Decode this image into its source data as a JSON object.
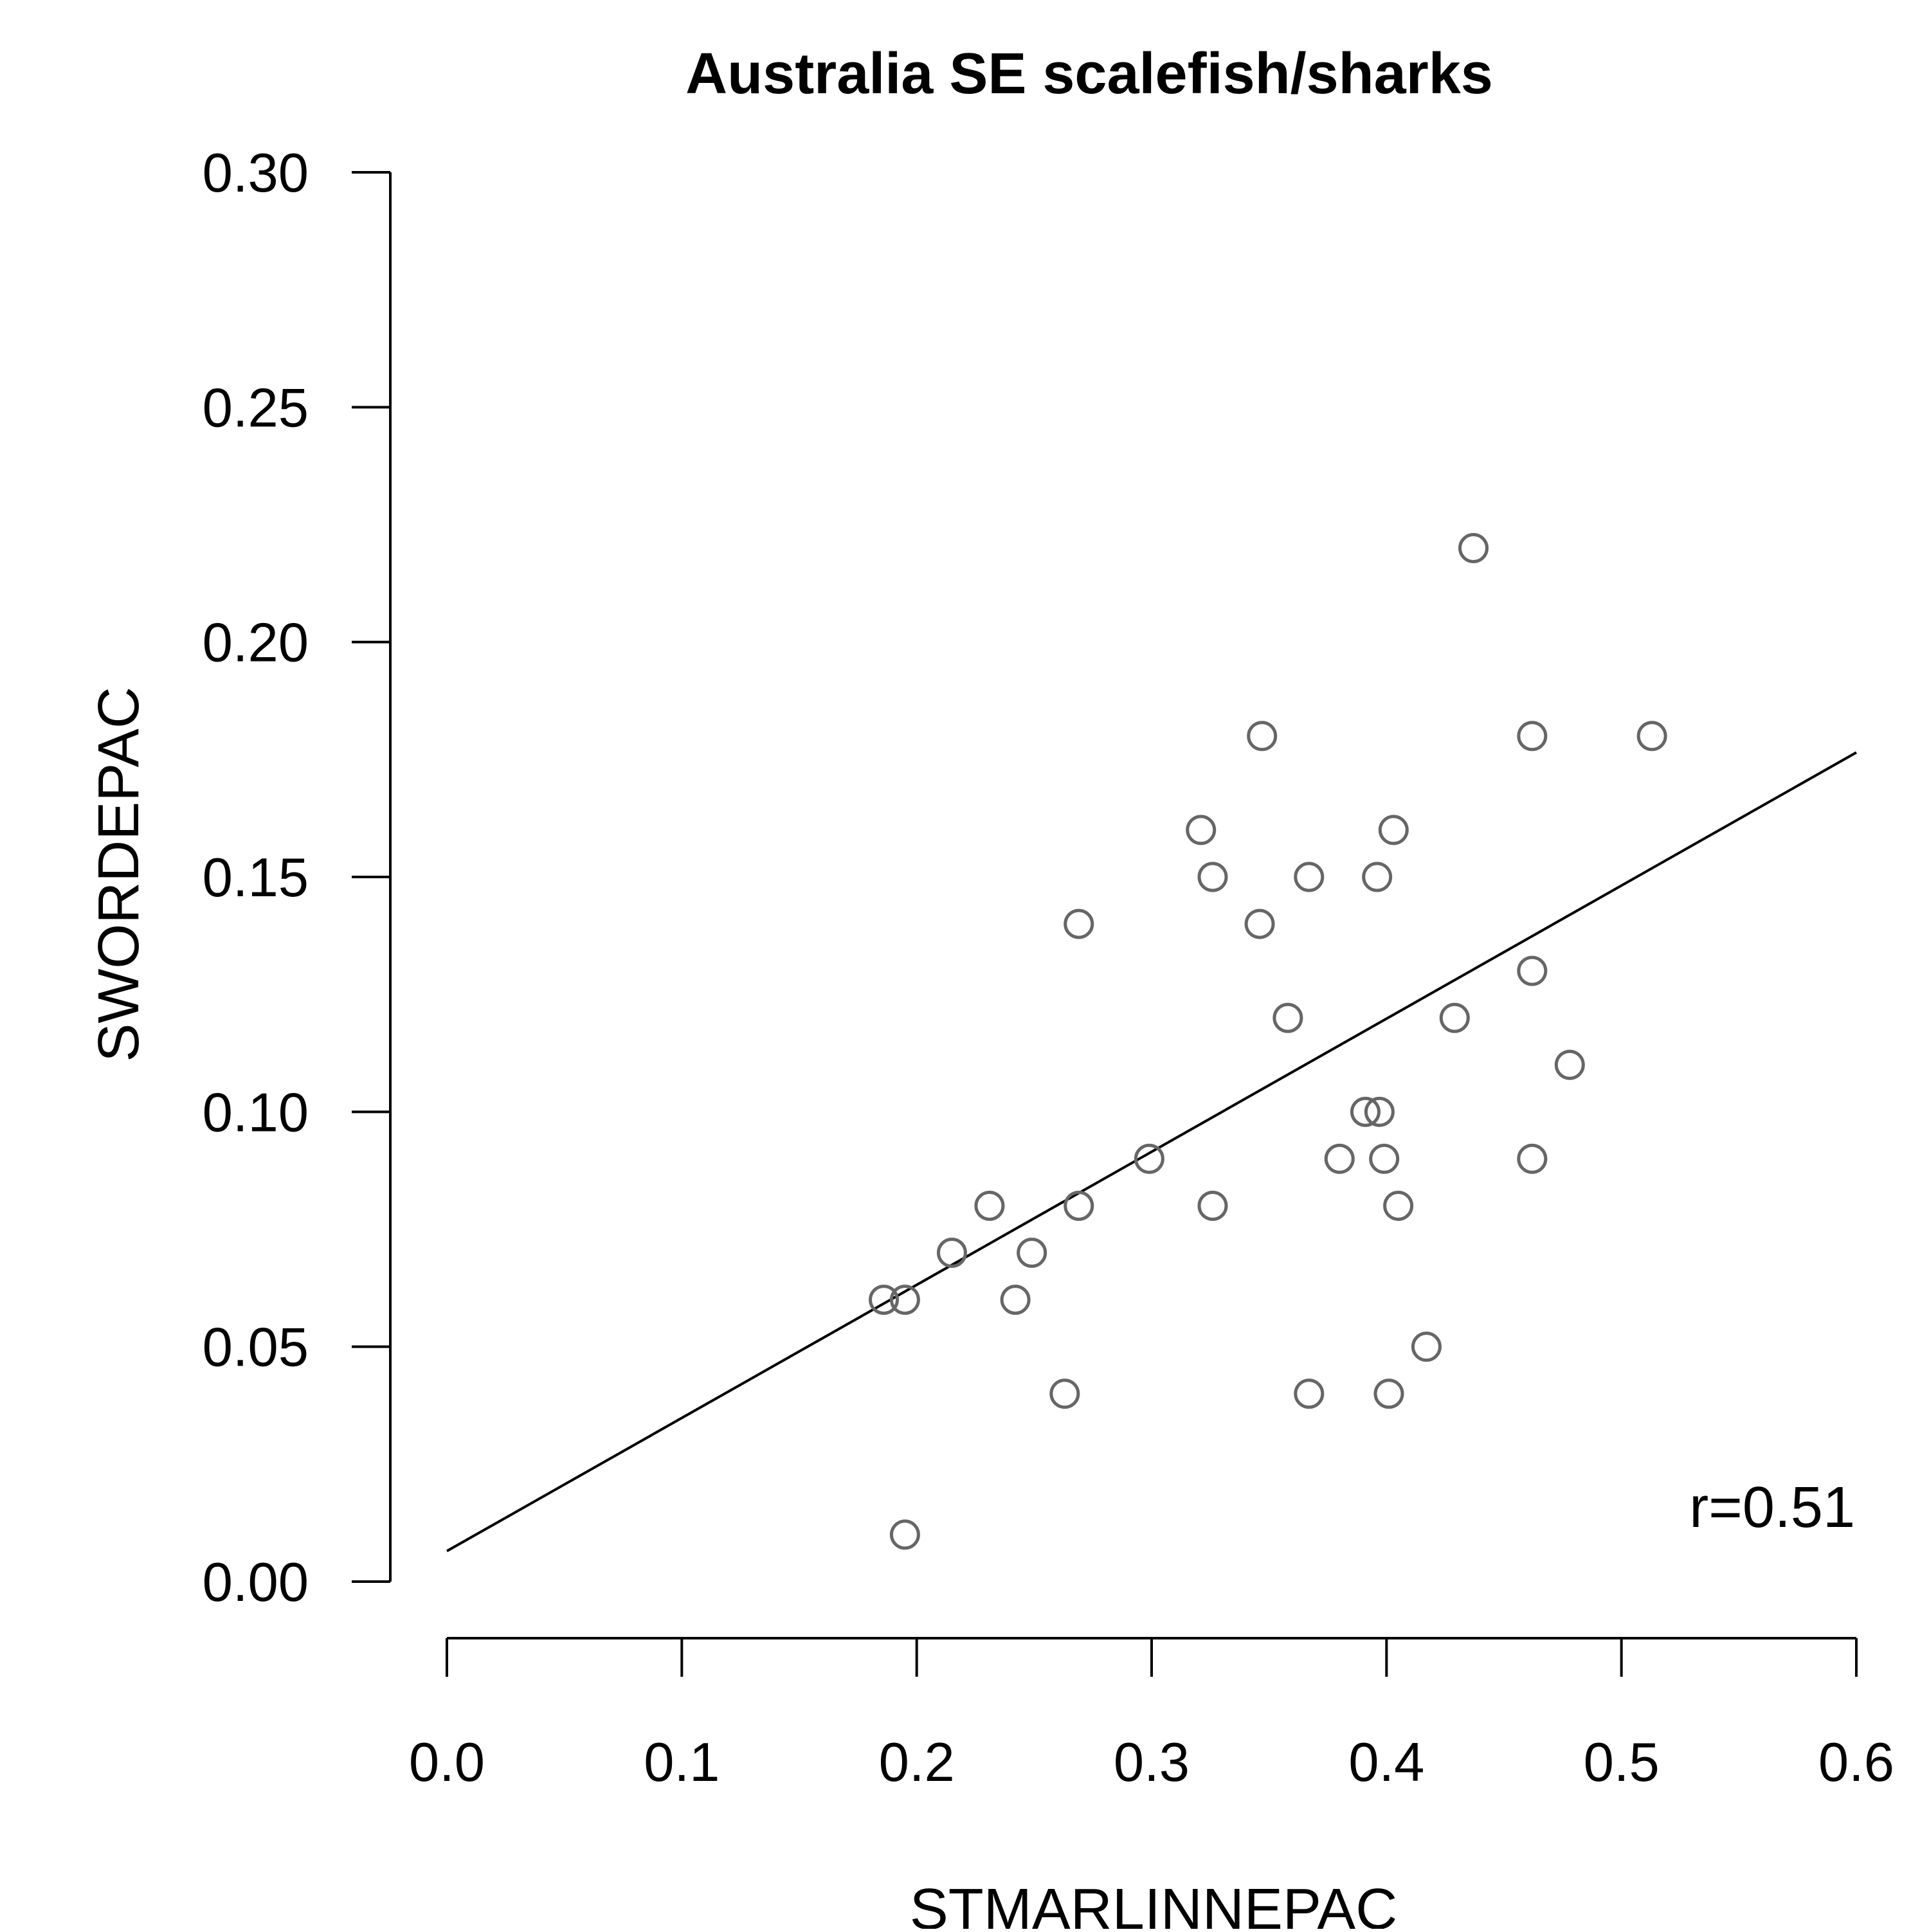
{
  "chart_data": {
    "type": "scatter",
    "title": "Australia SE scalefish/sharks",
    "xlabel": "STMARLINNEPAC",
    "ylabel": "SWORDEPAC",
    "xlim": [
      0.0,
      0.6
    ],
    "ylim": [
      0.0,
      0.3
    ],
    "xticks": [
      "0.0",
      "0.1",
      "0.2",
      "0.3",
      "0.4",
      "0.5",
      "0.6"
    ],
    "yticks": [
      "0.00",
      "0.05",
      "0.10",
      "0.15",
      "0.20",
      "0.25",
      "0.30"
    ],
    "grid": false,
    "annotation": "r=0.51",
    "point_color": "#666666",
    "line_color": "#000000",
    "points": [
      {
        "x": 0.186,
        "y": 0.06
      },
      {
        "x": 0.195,
        "y": 0.06
      },
      {
        "x": 0.195,
        "y": 0.01
      },
      {
        "x": 0.215,
        "y": 0.07
      },
      {
        "x": 0.231,
        "y": 0.08
      },
      {
        "x": 0.242,
        "y": 0.06
      },
      {
        "x": 0.249,
        "y": 0.07
      },
      {
        "x": 0.263,
        "y": 0.04
      },
      {
        "x": 0.269,
        "y": 0.14
      },
      {
        "x": 0.269,
        "y": 0.08
      },
      {
        "x": 0.299,
        "y": 0.09
      },
      {
        "x": 0.321,
        "y": 0.16
      },
      {
        "x": 0.326,
        "y": 0.15
      },
      {
        "x": 0.326,
        "y": 0.08
      },
      {
        "x": 0.346,
        "y": 0.14
      },
      {
        "x": 0.347,
        "y": 0.18
      },
      {
        "x": 0.358,
        "y": 0.12
      },
      {
        "x": 0.367,
        "y": 0.15
      },
      {
        "x": 0.367,
        "y": 0.04
      },
      {
        "x": 0.38,
        "y": 0.09
      },
      {
        "x": 0.391,
        "y": 0.1
      },
      {
        "x": 0.396,
        "y": 0.15
      },
      {
        "x": 0.397,
        "y": 0.1
      },
      {
        "x": 0.399,
        "y": 0.09
      },
      {
        "x": 0.401,
        "y": 0.04
      },
      {
        "x": 0.403,
        "y": 0.16
      },
      {
        "x": 0.405,
        "y": 0.08
      },
      {
        "x": 0.417,
        "y": 0.05
      },
      {
        "x": 0.429,
        "y": 0.12
      },
      {
        "x": 0.437,
        "y": 0.22
      },
      {
        "x": 0.462,
        "y": 0.18
      },
      {
        "x": 0.462,
        "y": 0.13
      },
      {
        "x": 0.462,
        "y": 0.09
      },
      {
        "x": 0.478,
        "y": 0.11
      },
      {
        "x": 0.513,
        "y": 0.18
      }
    ],
    "fit_line": {
      "x": [
        0.0,
        0.6
      ],
      "y": [
        0.0065,
        0.1765
      ]
    }
  }
}
